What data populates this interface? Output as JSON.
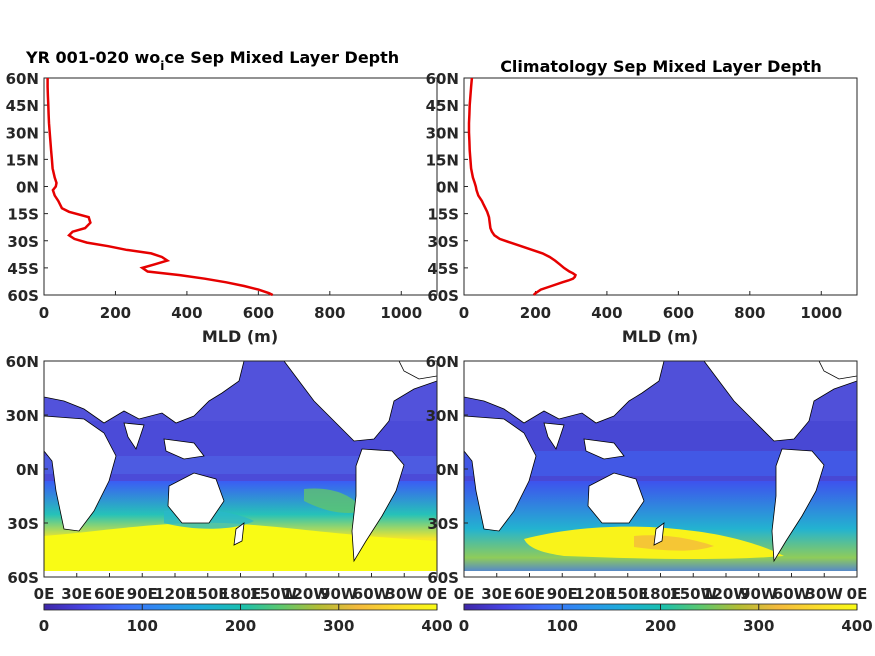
{
  "chart_data": [
    {
      "type": "line",
      "title": "YR 001-020 wo_ice Sep Mixed Layer Depth",
      "title_prefix": "YR 001-020 wo",
      "title_sub": "i",
      "title_suffix": "ce Sep Mixed Layer Depth",
      "xlabel": "MLD (m)",
      "xlim": [
        0,
        1100
      ],
      "ylim": [
        -60,
        60
      ],
      "xticks": [
        0,
        200,
        400,
        600,
        800,
        1000
      ],
      "yticks": [
        "60N",
        "45N",
        "30N",
        "15N",
        "0N",
        "15S",
        "30S",
        "45S",
        "60S"
      ],
      "series": [
        {
          "color": "#e60000",
          "y": [
            60,
            55,
            50,
            45,
            40,
            35,
            30,
            25,
            20,
            15,
            10,
            5,
            2,
            0,
            -2,
            -5,
            -8,
            -10,
            -12,
            -14,
            -17,
            -20,
            -23,
            -25,
            -27,
            -29,
            -31,
            -33,
            -35,
            -37,
            -39,
            -41,
            -43,
            -45,
            -47,
            -49,
            -51,
            -53,
            -55,
            -57,
            -59,
            -60
          ],
          "x": [
            10,
            10,
            11,
            12,
            13,
            14,
            16,
            18,
            20,
            22,
            24,
            30,
            35,
            33,
            25,
            30,
            40,
            45,
            50,
            70,
            125,
            130,
            115,
            80,
            70,
            85,
            120,
            180,
            230,
            300,
            330,
            345,
            310,
            275,
            290,
            380,
            450,
            510,
            560,
            600,
            630,
            640
          ]
        }
      ]
    },
    {
      "type": "line",
      "title": "Climatology Sep Mixed Layer Depth",
      "xlabel": "MLD (m)",
      "xlim": [
        0,
        1100
      ],
      "ylim": [
        -60,
        60
      ],
      "xticks": [
        0,
        200,
        400,
        600,
        800,
        1000
      ],
      "yticks": [
        "60N",
        "45N",
        "30N",
        "15N",
        "0N",
        "15S",
        "30S",
        "45S",
        "60S"
      ],
      "series": [
        {
          "color": "#e60000",
          "y": [
            60,
            55,
            50,
            45,
            40,
            35,
            30,
            25,
            20,
            15,
            10,
            5,
            2,
            0,
            -2,
            -5,
            -8,
            -10,
            -12,
            -14,
            -17,
            -20,
            -23,
            -25,
            -27,
            -29,
            -31,
            -33,
            -35,
            -37,
            -39,
            -41,
            -43,
            -45,
            -47,
            -48,
            -49,
            -50,
            -51,
            -52,
            -53,
            -55,
            -57,
            -59,
            -60
          ],
          "x": [
            22,
            20,
            18,
            16,
            15,
            14,
            14,
            15,
            16,
            18,
            20,
            25,
            30,
            33,
            35,
            40,
            50,
            55,
            60,
            65,
            70,
            72,
            74,
            78,
            85,
            100,
            130,
            160,
            190,
            220,
            240,
            255,
            268,
            280,
            295,
            305,
            312,
            310,
            305,
            292,
            275,
            245,
            215,
            200,
            195
          ]
        }
      ]
    },
    {
      "type": "heatmap",
      "title": "",
      "xticks": [
        "0E",
        "30E",
        "60E",
        "90E",
        "120E",
        "150E",
        "180E",
        "150W",
        "120W",
        "90W",
        "60W",
        "30W",
        "0E"
      ],
      "yticks": [
        "60N",
        "30N",
        "0N",
        "30S",
        "60S"
      ],
      "colorbar": {
        "ticks": [
          0,
          100,
          200,
          300,
          400
        ],
        "range": [
          0,
          400
        ]
      }
    },
    {
      "type": "heatmap",
      "title": "",
      "xticks": [
        "0E",
        "30E",
        "60E",
        "90E",
        "120E",
        "150E",
        "180E",
        "150W",
        "120W",
        "90W",
        "60W",
        "30W",
        "0E"
      ],
      "yticks": [
        "60N",
        "30N",
        "0N",
        "30S",
        "60S"
      ],
      "colorbar": {
        "ticks": [
          0,
          100,
          200,
          300,
          400
        ],
        "range": [
          0,
          400
        ]
      }
    }
  ],
  "colors": {
    "line": "#e60000",
    "colormap": [
      "#3e26a8",
      "#4743e3",
      "#3e6cf9",
      "#2d8ef0",
      "#1dabda",
      "#18bfb0",
      "#5ac870",
      "#b4bd35",
      "#f4ba3c",
      "#fadc2a",
      "#f9fb15"
    ]
  }
}
